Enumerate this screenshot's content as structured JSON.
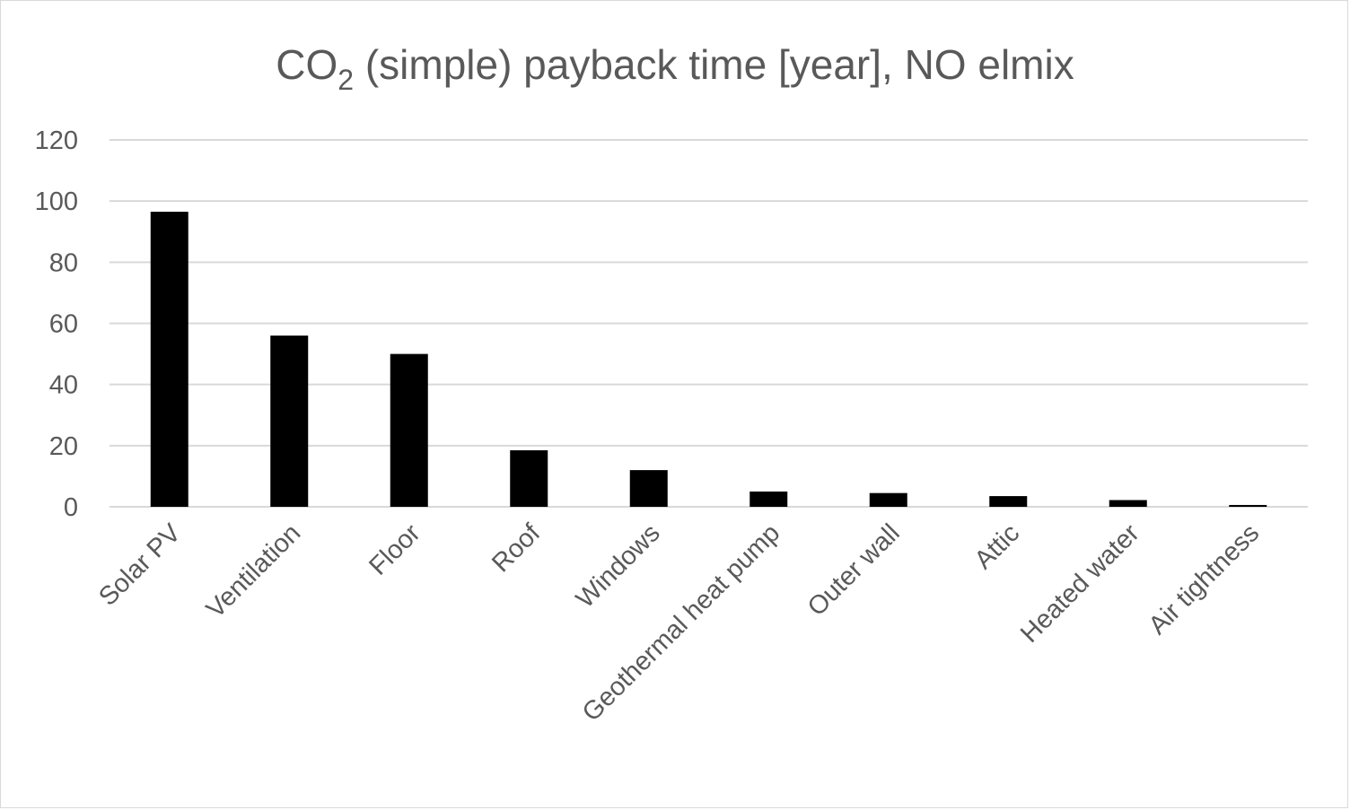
{
  "chart_data": {
    "type": "bar",
    "title": {
      "main": "CO",
      "subscript": "2",
      "rest": " (simple) payback time [year], NO elmix"
    },
    "xlabel": "",
    "ylabel": "",
    "ylim": [
      0,
      120
    ],
    "yticks": [
      0,
      20,
      40,
      60,
      80,
      100,
      120
    ],
    "ytick_labels": [
      "0",
      "20",
      "40",
      "60",
      "80",
      "100",
      "120"
    ],
    "grid": true,
    "legend": "none",
    "bar_color": "#000000",
    "categories": [
      "Solar PV",
      "Ventilation",
      "Floor",
      "Roof",
      "Windows",
      "Geothermal heat pump",
      "Outer wall",
      "Attic",
      "Heated water",
      "Air tightness"
    ],
    "values": [
      96.5,
      56,
      50,
      18.5,
      12,
      5,
      4.5,
      3.5,
      2.2,
      0.6
    ]
  }
}
